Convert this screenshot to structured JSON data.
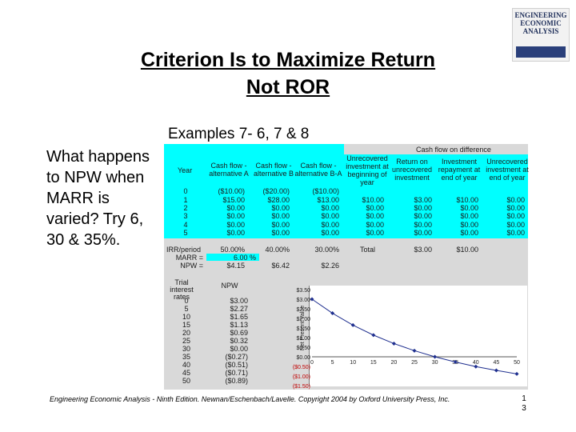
{
  "title_lines": [
    "Criterion Is to Maximize Return",
    "Not ROR"
  ],
  "book_cover": {
    "text": "ENGINEERING ECONOMIC ANALYSIS"
  },
  "subtitle": "Examples 7- 6, 7 & 8",
  "question": "What happens to NPW when MARR is varied? Try 6, 30 & 35%.",
  "sheet": {
    "cash_flow_header": "Cash flow on difference",
    "col_year": "Year",
    "col_a": "Cash flow - alternative A",
    "col_b": "Cash flow - alternative B",
    "col_ba": "Cash flow - alternative B-A",
    "col_unrecovered_begin": "Unrecovered investment at beginning of year",
    "col_return": "Return on unrecovered investment",
    "col_repayment": "Investment repayment at end of year",
    "col_unrecovered_end": "Unrecovered investment at end of year",
    "years": [
      "0",
      "1",
      "2",
      "3",
      "4",
      "5"
    ],
    "cf_a": [
      "($10.00)",
      "$15.00",
      "$0.00",
      "$0.00",
      "$0.00",
      "$0.00"
    ],
    "cf_b": [
      "($20.00)",
      "$28.00",
      "$0.00",
      "$0.00",
      "$0.00",
      "$0.00"
    ],
    "cf_ba": [
      "($10.00)",
      "$13.00",
      "$0.00",
      "$0.00",
      "$0.00",
      "$0.00"
    ],
    "unrec_begin": [
      "",
      "$10.00",
      "$0.00",
      "$0.00",
      "$0.00",
      "$0.00"
    ],
    "return_vals": [
      "",
      "$3.00",
      "$0.00",
      "$0.00",
      "$0.00",
      "$0.00"
    ],
    "repay_vals": [
      "",
      "$10.00",
      "$0.00",
      "$0.00",
      "$0.00",
      "$0.00"
    ],
    "unrec_end": [
      "",
      "$0.00",
      "$0.00",
      "$0.00",
      "$0.00",
      "$0.00"
    ],
    "irr_label": "IRR/period",
    "irr_a": "50.00%",
    "irr_b": "40.00%",
    "irr_ba": "30.00%",
    "total_label": "Total",
    "total_return": "$3.00",
    "total_repay": "$10.00",
    "marr_label": "MARR =",
    "marr_value": "6.00 %",
    "npw_label": "NPW =",
    "npw_a": "$4.15",
    "npw_b": "$6.42",
    "npw_ba": "$2.26",
    "rates_header": "Trial interest rates",
    "npw_header": "NPW",
    "rates": [
      "0",
      "5",
      "10",
      "15",
      "20",
      "25",
      "30",
      "35",
      "40",
      "45",
      "50"
    ],
    "npw_vals": [
      "$3.00",
      "$2.27",
      "$1.65",
      "$1.13",
      "$0.69",
      "$0.32",
      "$0.00",
      "($0.27)",
      "($0.51)",
      "($0.71)",
      "($0.89)"
    ]
  },
  "chart_data": {
    "type": "scatter",
    "title": "",
    "xlabel": "",
    "ylabel": "Net Present Value",
    "x": [
      0,
      5,
      10,
      15,
      20,
      25,
      30,
      35,
      40,
      45,
      50
    ],
    "y": [
      3.0,
      2.27,
      1.65,
      1.13,
      0.69,
      0.32,
      0.0,
      -0.27,
      -0.51,
      -0.71,
      -0.89
    ],
    "xlim": [
      0,
      50
    ],
    "ylim": [
      -1.5,
      3.5
    ],
    "x_ticks": [
      "0",
      "5",
      "10",
      "15",
      "20",
      "25",
      "30",
      "35",
      "40",
      "45",
      "50"
    ],
    "y_ticks": [
      "$3.50",
      "$3.00",
      "$2.50",
      "$2.00",
      "$1.50",
      "$1.00",
      "$0.50",
      "$0.00",
      "($0.50)",
      "($1.00)",
      "($1.50)"
    ],
    "y_tick_values": [
      3.5,
      3.0,
      2.5,
      2.0,
      1.5,
      1.0,
      0.5,
      0.0,
      -0.5,
      -1.0,
      -1.5
    ],
    "grid": false,
    "marker_color": "#1f2f8f",
    "line_color": "#1f2f8f"
  },
  "footer": "Engineering Economic Analysis - Ninth Edition. Newnan/Eschenbach/Lavelle. Copyright 2004 by Oxford University Press, Inc.",
  "page_number": "13"
}
